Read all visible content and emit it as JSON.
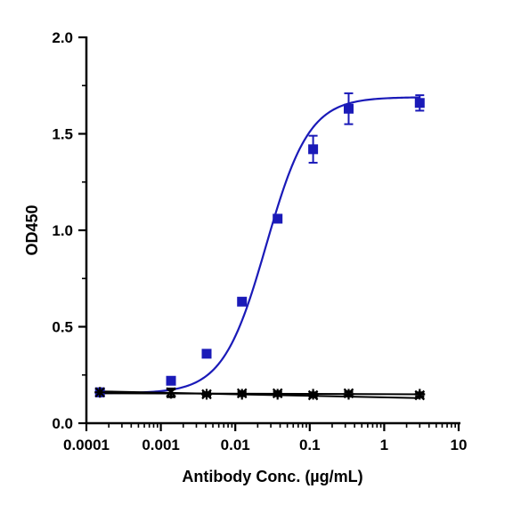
{
  "chart_data": {
    "type": "scatter",
    "title": "",
    "xlabel": "Antibody Conc. (µg/mL)",
    "ylabel": "OD450",
    "x_scale": "log",
    "xlim": [
      0.0001,
      10
    ],
    "ylim": [
      0,
      2.0
    ],
    "x_ticks": [
      {
        "value": 0.0001,
        "label": "0.0001"
      },
      {
        "value": 0.001,
        "label": "0.001"
      },
      {
        "value": 0.01,
        "label": "0.01"
      },
      {
        "value": 0.1,
        "label": "0.1"
      },
      {
        "value": 1,
        "label": "1"
      },
      {
        "value": 10,
        "label": "10"
      }
    ],
    "y_ticks": [
      {
        "value": 0,
        "label": "0.0"
      },
      {
        "value": 0.5,
        "label": "0.5"
      },
      {
        "value": 1.0,
        "label": "1.0"
      },
      {
        "value": 1.5,
        "label": "1.5"
      },
      {
        "value": 2.0,
        "label": "2.0"
      }
    ],
    "grid": false,
    "legend": "none",
    "series": [
      {
        "marker": "square",
        "color": "#1a1ab8",
        "fit": "four-parameter-logistic",
        "fit_params": {
          "bottom": 0.155,
          "top": 1.69,
          "ec50": 0.026,
          "hill": 1.5
        },
        "points": [
          {
            "x": 0.000152,
            "y": 0.16,
            "err": 0.01
          },
          {
            "x": 0.00137,
            "y": 0.22,
            "err": 0.01
          },
          {
            "x": 0.00412,
            "y": 0.36,
            "err": 0.01
          },
          {
            "x": 0.0123,
            "y": 0.63,
            "err": 0.01
          },
          {
            "x": 0.037,
            "y": 1.06,
            "err": 0.015
          },
          {
            "x": 0.111,
            "y": 1.42,
            "err": 0.07
          },
          {
            "x": 0.333,
            "y": 1.63,
            "err": 0.08
          },
          {
            "x": 3.0,
            "y": 1.66,
            "err": 0.04
          }
        ]
      },
      {
        "marker": "x",
        "color": "#000000",
        "fit": "line",
        "points": [
          {
            "x": 0.000152,
            "y": 0.16,
            "err": 0.02
          },
          {
            "x": 0.00137,
            "y": 0.16,
            "err": 0.02
          },
          {
            "x": 0.00412,
            "y": 0.15,
            "err": 0.01
          },
          {
            "x": 0.0123,
            "y": 0.155,
            "err": 0.01
          },
          {
            "x": 0.037,
            "y": 0.155,
            "err": 0.01
          },
          {
            "x": 0.111,
            "y": 0.145,
            "err": 0.01
          },
          {
            "x": 0.333,
            "y": 0.155,
            "err": 0.01
          },
          {
            "x": 3.0,
            "y": 0.145,
            "err": 0.01
          }
        ],
        "fit_line": [
          {
            "x": 0.000152,
            "y": 0.165
          },
          {
            "x": 3.0,
            "y": 0.13
          }
        ]
      },
      {
        "marker": "plus",
        "color": "#000000",
        "fit": "line",
        "points": [
          {
            "x": 0.000152,
            "y": 0.16,
            "err": 0.02
          },
          {
            "x": 0.00137,
            "y": 0.155,
            "err": 0.02
          },
          {
            "x": 0.00412,
            "y": 0.15,
            "err": 0.01
          },
          {
            "x": 0.0123,
            "y": 0.15,
            "err": 0.01
          },
          {
            "x": 0.037,
            "y": 0.15,
            "err": 0.01
          },
          {
            "x": 0.111,
            "y": 0.15,
            "err": 0.01
          },
          {
            "x": 0.333,
            "y": 0.15,
            "err": 0.01
          },
          {
            "x": 3.0,
            "y": 0.15,
            "err": 0.01
          }
        ],
        "fit_line": [
          {
            "x": 0.000152,
            "y": 0.155
          },
          {
            "x": 3.0,
            "y": 0.15
          }
        ]
      }
    ]
  }
}
